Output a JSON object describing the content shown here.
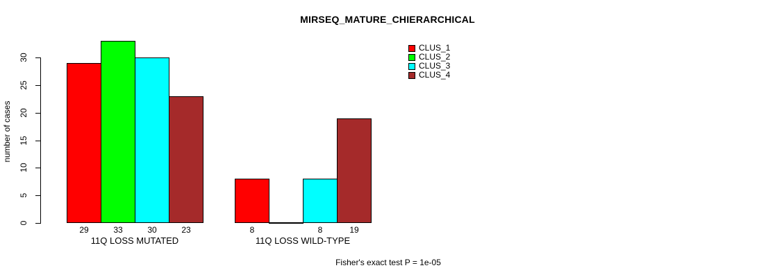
{
  "chart_data": {
    "type": "bar",
    "title": "MIRSEQ_MATURE_CHIERARCHICAL",
    "ylabel": "number of cases",
    "xlabel": "",
    "categories": [
      "11Q LOSS MUTATED",
      "11Q LOSS WILD-TYPE"
    ],
    "series": [
      {
        "name": "CLUS_1",
        "color": "#FF0000",
        "values": [
          29,
          8
        ]
      },
      {
        "name": "CLUS_2",
        "color": "#00FF00",
        "values": [
          33,
          0
        ]
      },
      {
        "name": "CLUS_3",
        "color": "#00FFFF",
        "values": [
          30,
          8
        ]
      },
      {
        "name": "CLUS_4",
        "color": "#A52A2A",
        "values": [
          23,
          19
        ]
      }
    ],
    "bar_labels": [
      [
        "29",
        "33",
        "30",
        "23"
      ],
      [
        "8",
        "",
        "8",
        "19"
      ]
    ],
    "yticks": [
      0,
      5,
      10,
      15,
      20,
      25,
      30
    ],
    "ylim": [
      0,
      33
    ],
    "grid": false,
    "legend_position": "top-right",
    "annotation": "Fisher's exact test P = 1e-05"
  }
}
